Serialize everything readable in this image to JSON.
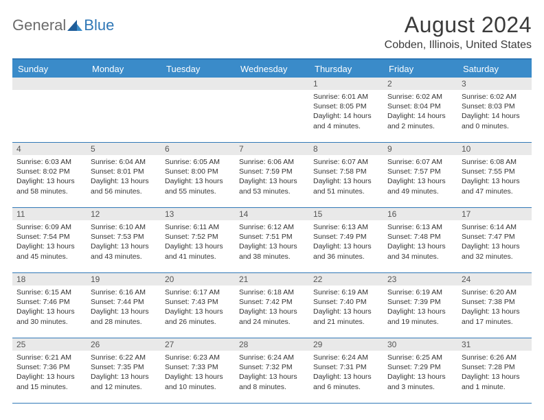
{
  "brand": {
    "part1": "General",
    "part2": "Blue"
  },
  "title": "August 2024",
  "location": "Cobden, Illinois, United States",
  "colors": {
    "header_bg": "#3a8bc9",
    "border": "#2f77b6",
    "daynum_bg": "#e9e9e9",
    "text": "#333333",
    "logo_gray": "#6b6b6b",
    "logo_blue": "#2f77b6"
  },
  "day_headers": [
    "Sunday",
    "Monday",
    "Tuesday",
    "Wednesday",
    "Thursday",
    "Friday",
    "Saturday"
  ],
  "weeks": [
    [
      {
        "n": "",
        "sr": "",
        "ss": "",
        "dl": ""
      },
      {
        "n": "",
        "sr": "",
        "ss": "",
        "dl": ""
      },
      {
        "n": "",
        "sr": "",
        "ss": "",
        "dl": ""
      },
      {
        "n": "",
        "sr": "",
        "ss": "",
        "dl": ""
      },
      {
        "n": "1",
        "sr": "Sunrise: 6:01 AM",
        "ss": "Sunset: 8:05 PM",
        "dl": "Daylight: 14 hours and 4 minutes."
      },
      {
        "n": "2",
        "sr": "Sunrise: 6:02 AM",
        "ss": "Sunset: 8:04 PM",
        "dl": "Daylight: 14 hours and 2 minutes."
      },
      {
        "n": "3",
        "sr": "Sunrise: 6:02 AM",
        "ss": "Sunset: 8:03 PM",
        "dl": "Daylight: 14 hours and 0 minutes."
      }
    ],
    [
      {
        "n": "4",
        "sr": "Sunrise: 6:03 AM",
        "ss": "Sunset: 8:02 PM",
        "dl": "Daylight: 13 hours and 58 minutes."
      },
      {
        "n": "5",
        "sr": "Sunrise: 6:04 AM",
        "ss": "Sunset: 8:01 PM",
        "dl": "Daylight: 13 hours and 56 minutes."
      },
      {
        "n": "6",
        "sr": "Sunrise: 6:05 AM",
        "ss": "Sunset: 8:00 PM",
        "dl": "Daylight: 13 hours and 55 minutes."
      },
      {
        "n": "7",
        "sr": "Sunrise: 6:06 AM",
        "ss": "Sunset: 7:59 PM",
        "dl": "Daylight: 13 hours and 53 minutes."
      },
      {
        "n": "8",
        "sr": "Sunrise: 6:07 AM",
        "ss": "Sunset: 7:58 PM",
        "dl": "Daylight: 13 hours and 51 minutes."
      },
      {
        "n": "9",
        "sr": "Sunrise: 6:07 AM",
        "ss": "Sunset: 7:57 PM",
        "dl": "Daylight: 13 hours and 49 minutes."
      },
      {
        "n": "10",
        "sr": "Sunrise: 6:08 AM",
        "ss": "Sunset: 7:55 PM",
        "dl": "Daylight: 13 hours and 47 minutes."
      }
    ],
    [
      {
        "n": "11",
        "sr": "Sunrise: 6:09 AM",
        "ss": "Sunset: 7:54 PM",
        "dl": "Daylight: 13 hours and 45 minutes."
      },
      {
        "n": "12",
        "sr": "Sunrise: 6:10 AM",
        "ss": "Sunset: 7:53 PM",
        "dl": "Daylight: 13 hours and 43 minutes."
      },
      {
        "n": "13",
        "sr": "Sunrise: 6:11 AM",
        "ss": "Sunset: 7:52 PM",
        "dl": "Daylight: 13 hours and 41 minutes."
      },
      {
        "n": "14",
        "sr": "Sunrise: 6:12 AM",
        "ss": "Sunset: 7:51 PM",
        "dl": "Daylight: 13 hours and 38 minutes."
      },
      {
        "n": "15",
        "sr": "Sunrise: 6:13 AM",
        "ss": "Sunset: 7:49 PM",
        "dl": "Daylight: 13 hours and 36 minutes."
      },
      {
        "n": "16",
        "sr": "Sunrise: 6:13 AM",
        "ss": "Sunset: 7:48 PM",
        "dl": "Daylight: 13 hours and 34 minutes."
      },
      {
        "n": "17",
        "sr": "Sunrise: 6:14 AM",
        "ss": "Sunset: 7:47 PM",
        "dl": "Daylight: 13 hours and 32 minutes."
      }
    ],
    [
      {
        "n": "18",
        "sr": "Sunrise: 6:15 AM",
        "ss": "Sunset: 7:46 PM",
        "dl": "Daylight: 13 hours and 30 minutes."
      },
      {
        "n": "19",
        "sr": "Sunrise: 6:16 AM",
        "ss": "Sunset: 7:44 PM",
        "dl": "Daylight: 13 hours and 28 minutes."
      },
      {
        "n": "20",
        "sr": "Sunrise: 6:17 AM",
        "ss": "Sunset: 7:43 PM",
        "dl": "Daylight: 13 hours and 26 minutes."
      },
      {
        "n": "21",
        "sr": "Sunrise: 6:18 AM",
        "ss": "Sunset: 7:42 PM",
        "dl": "Daylight: 13 hours and 24 minutes."
      },
      {
        "n": "22",
        "sr": "Sunrise: 6:19 AM",
        "ss": "Sunset: 7:40 PM",
        "dl": "Daylight: 13 hours and 21 minutes."
      },
      {
        "n": "23",
        "sr": "Sunrise: 6:19 AM",
        "ss": "Sunset: 7:39 PM",
        "dl": "Daylight: 13 hours and 19 minutes."
      },
      {
        "n": "24",
        "sr": "Sunrise: 6:20 AM",
        "ss": "Sunset: 7:38 PM",
        "dl": "Daylight: 13 hours and 17 minutes."
      }
    ],
    [
      {
        "n": "25",
        "sr": "Sunrise: 6:21 AM",
        "ss": "Sunset: 7:36 PM",
        "dl": "Daylight: 13 hours and 15 minutes."
      },
      {
        "n": "26",
        "sr": "Sunrise: 6:22 AM",
        "ss": "Sunset: 7:35 PM",
        "dl": "Daylight: 13 hours and 12 minutes."
      },
      {
        "n": "27",
        "sr": "Sunrise: 6:23 AM",
        "ss": "Sunset: 7:33 PM",
        "dl": "Daylight: 13 hours and 10 minutes."
      },
      {
        "n": "28",
        "sr": "Sunrise: 6:24 AM",
        "ss": "Sunset: 7:32 PM",
        "dl": "Daylight: 13 hours and 8 minutes."
      },
      {
        "n": "29",
        "sr": "Sunrise: 6:24 AM",
        "ss": "Sunset: 7:31 PM",
        "dl": "Daylight: 13 hours and 6 minutes."
      },
      {
        "n": "30",
        "sr": "Sunrise: 6:25 AM",
        "ss": "Sunset: 7:29 PM",
        "dl": "Daylight: 13 hours and 3 minutes."
      },
      {
        "n": "31",
        "sr": "Sunrise: 6:26 AM",
        "ss": "Sunset: 7:28 PM",
        "dl": "Daylight: 13 hours and 1 minute."
      }
    ]
  ]
}
